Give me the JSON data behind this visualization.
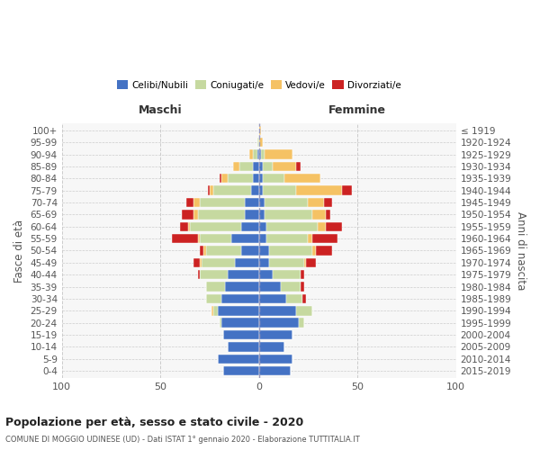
{
  "age_groups": [
    "100+",
    "95-99",
    "90-94",
    "85-89",
    "80-84",
    "75-79",
    "70-74",
    "65-69",
    "60-64",
    "55-59",
    "50-54",
    "45-49",
    "40-44",
    "35-39",
    "30-34",
    "25-29",
    "20-24",
    "15-19",
    "10-14",
    "5-9",
    "0-4"
  ],
  "birth_years": [
    "≤ 1919",
    "1920-1924",
    "1925-1929",
    "1930-1934",
    "1935-1939",
    "1940-1944",
    "1945-1949",
    "1950-1954",
    "1955-1959",
    "1960-1964",
    "1965-1969",
    "1970-1974",
    "1975-1979",
    "1980-1984",
    "1985-1989",
    "1990-1994",
    "1995-1999",
    "2000-2004",
    "2005-2009",
    "2010-2014",
    "2015-2019"
  ],
  "colors": {
    "celibi": "#4472C4",
    "coniugati": "#C6D9A0",
    "vedovi": "#F5C264",
    "divorziati": "#CC2222"
  },
  "maschi": {
    "celibi": [
      0,
      0,
      1,
      3,
      3,
      4,
      7,
      7,
      9,
      14,
      9,
      12,
      16,
      17,
      19,
      21,
      19,
      18,
      16,
      21,
      18
    ],
    "coniugati": [
      0,
      1,
      2,
      7,
      13,
      19,
      23,
      24,
      26,
      16,
      18,
      17,
      14,
      10,
      8,
      2,
      1,
      0,
      0,
      0,
      0
    ],
    "vedovi": [
      0,
      0,
      2,
      3,
      3,
      2,
      3,
      2,
      1,
      1,
      1,
      1,
      0,
      0,
      0,
      1,
      0,
      0,
      0,
      0,
      0
    ],
    "divorziati": [
      0,
      0,
      0,
      0,
      1,
      1,
      4,
      6,
      4,
      13,
      2,
      3,
      1,
      0,
      0,
      0,
      0,
      0,
      0,
      0,
      0
    ]
  },
  "femmine": {
    "celibi": [
      0,
      0,
      1,
      2,
      2,
      2,
      3,
      3,
      4,
      4,
      5,
      5,
      7,
      11,
      14,
      19,
      20,
      17,
      13,
      17,
      16
    ],
    "coniugati": [
      0,
      0,
      2,
      5,
      11,
      17,
      22,
      24,
      26,
      21,
      22,
      18,
      14,
      10,
      8,
      8,
      3,
      0,
      0,
      0,
      0
    ],
    "vedovi": [
      1,
      2,
      14,
      12,
      18,
      23,
      8,
      7,
      4,
      2,
      2,
      1,
      0,
      0,
      0,
      0,
      0,
      0,
      0,
      0,
      0
    ],
    "divorziati": [
      0,
      0,
      0,
      2,
      0,
      5,
      4,
      2,
      8,
      13,
      8,
      5,
      2,
      2,
      2,
      0,
      0,
      0,
      0,
      0,
      0
    ]
  },
  "title": "Popolazione per età, sesso e stato civile - 2020",
  "subtitle": "COMUNE DI MOGGIO UDINESE (UD) - Dati ISTAT 1° gennaio 2020 - Elaborazione TUTTITALIA.IT",
  "xlabel_left": "Maschi",
  "xlabel_right": "Femmine",
  "ylabel_left": "Fasce di età",
  "ylabel_right": "Anni di nascita",
  "xlim": 100,
  "legend_labels": [
    "Celibi/Nubili",
    "Coniugati/e",
    "Vedovi/e",
    "Divorziati/e"
  ],
  "bg_color": "#f7f7f7",
  "grid_color": "#cccccc",
  "text_color": "#555555"
}
